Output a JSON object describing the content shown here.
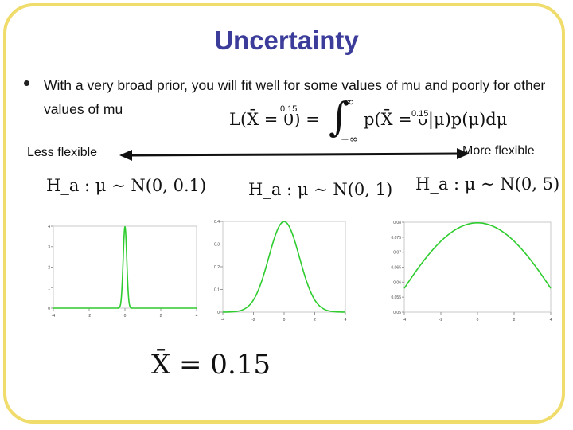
{
  "title": "Uncertainty",
  "bullet": "With a very broad prior, you will fit well for some values of mu and poorly for other values of mu",
  "formula": {
    "lhs": "L(X̄ = 0) =",
    "rhs": "p(X̄ = 0|μ)p(μ)dμ",
    "int_upper": "∞",
    "int_lower": "−∞",
    "overlay_left": "0.15",
    "overlay_right": "0.15"
  },
  "scale": {
    "left_label": "Less flexible",
    "right_label": "More flexible"
  },
  "hypotheses": [
    {
      "label": "H_a : μ ∼ N(0, 0.1)"
    },
    {
      "label": "H_a : μ ∼ N(0, 1)"
    },
    {
      "label": "H_a : μ ∼ N(0, 5)"
    }
  ],
  "observed": "X̄ = 0.15",
  "colors": {
    "curve": "#2ecc2e",
    "title": "#3c3c9a",
    "frame": "#f0dc6a"
  },
  "chart_data": [
    {
      "type": "line",
      "distribution": "normal",
      "mean": 0,
      "sd": 0.1,
      "xlim": [
        -4,
        4
      ],
      "ylim": [
        0,
        4
      ],
      "xticks": [
        "-4",
        "-2",
        "0",
        "2",
        "4"
      ],
      "yticks": [
        "0",
        "1",
        "2",
        "3",
        "4"
      ]
    },
    {
      "type": "line",
      "distribution": "normal",
      "mean": 0,
      "sd": 1,
      "xlim": [
        -4,
        4
      ],
      "ylim": [
        0,
        0.4
      ],
      "xticks": [
        "-4",
        "-2",
        "0",
        "2",
        "4"
      ],
      "yticks": [
        "0",
        "0.1",
        "0.2",
        "0.3",
        "0.4"
      ]
    },
    {
      "type": "line",
      "distribution": "normal",
      "mean": 0,
      "sd": 5,
      "xlim": [
        -4,
        4
      ],
      "ylim": [
        0.05,
        0.08
      ],
      "xticks": [
        "-4",
        "-2",
        "0",
        "2",
        "4"
      ],
      "yticks": [
        "0.05",
        "0.055",
        "0.06",
        "0.065",
        "0.07",
        "0.075",
        "0.08"
      ]
    }
  ]
}
